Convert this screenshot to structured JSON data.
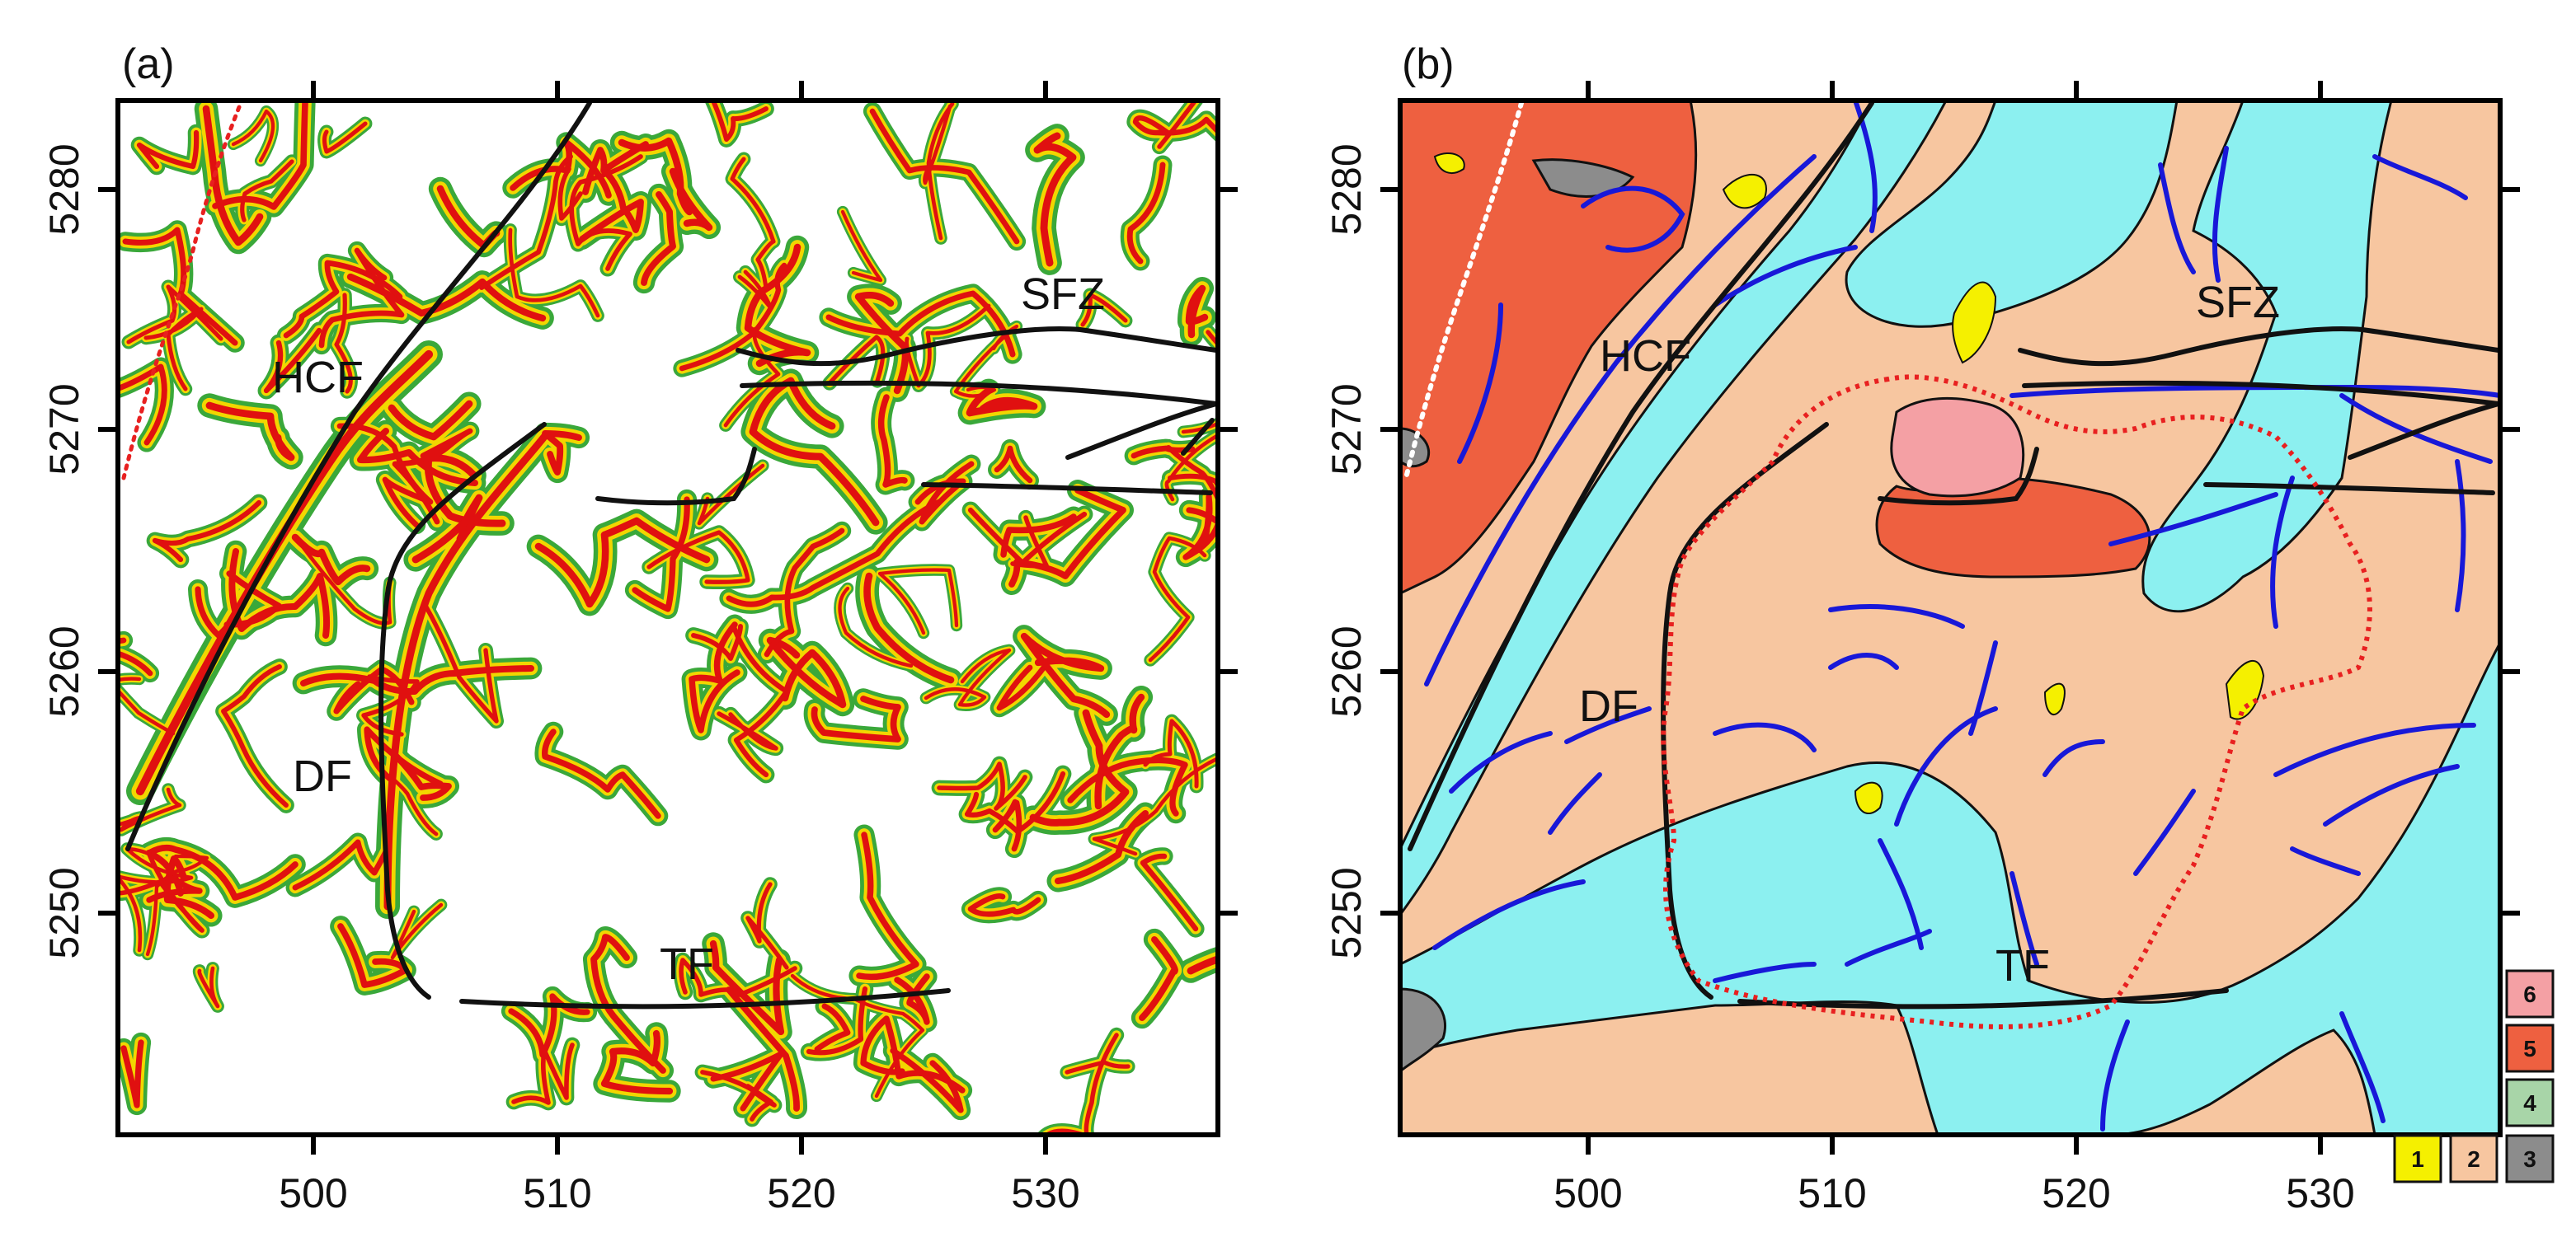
{
  "panels": [
    {
      "id": "a",
      "label": "(a)"
    },
    {
      "id": "b",
      "label": "(b)"
    }
  ],
  "axes": {
    "x_ticks": [
      "500",
      "510",
      "520",
      "530"
    ],
    "y_ticks": [
      "5280",
      "5270",
      "5260",
      "5250"
    ]
  },
  "fault_labels": {
    "hcf": "HCF",
    "sfz": "SFZ",
    "df": "DF",
    "tf": "TF"
  },
  "legend": {
    "items": [
      {
        "key": "1",
        "color": "#f5f000"
      },
      {
        "key": "2",
        "color": "#f7c6a0"
      },
      {
        "key": "3",
        "color": "#8c8c8c"
      },
      {
        "key": "4",
        "color": "#a8d5a8"
      },
      {
        "key": "5",
        "color": "#ee6040"
      },
      {
        "key": "6",
        "color": "#f4a0a4"
      }
    ]
  },
  "colors": {
    "anomaly_high": "#e01010",
    "anomaly_mid": "#f2d600",
    "anomaly_low": "#3aa83a",
    "cyan_unit": "#8cf0f0",
    "lineament": "#1818d8",
    "boundary_dotted": "#e82020"
  }
}
